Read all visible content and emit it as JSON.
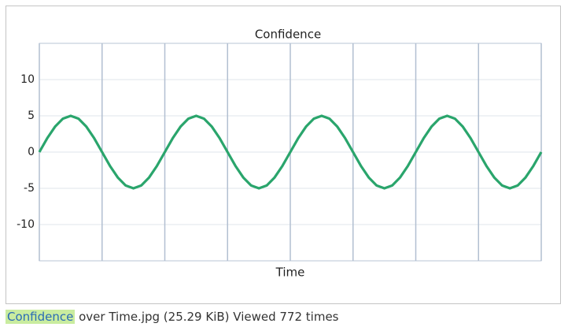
{
  "chart_data": {
    "type": "line",
    "title": "Confidence",
    "x_label": "Time",
    "x": [
      0,
      0.125,
      0.25,
      0.375,
      0.5,
      0.625,
      0.75,
      0.875,
      1,
      1.125,
      1.25,
      1.375,
      1.5,
      1.625,
      1.75,
      1.875,
      2,
      2.125,
      2.25,
      2.375,
      2.5,
      2.625,
      2.75,
      2.875,
      3,
      3.125,
      3.25,
      3.375,
      3.5,
      3.625,
      3.75,
      3.875,
      4,
      4.125,
      4.25,
      4.375,
      4.5,
      4.625,
      4.75,
      4.875,
      5,
      5.125,
      5.25,
      5.375,
      5.5,
      5.625,
      5.75,
      5.875,
      6,
      6.125,
      6.25,
      6.375,
      6.5,
      6.625,
      6.75,
      6.875,
      7,
      7.125,
      7.25,
      7.375,
      7.5,
      7.625,
      7.75,
      7.875,
      8
    ],
    "series": [
      {
        "color": "#2aa56c",
        "values": [
          0,
          1.9,
          3.5,
          4.6,
          5,
          4.6,
          3.5,
          1.9,
          0,
          -1.9,
          -3.5,
          -4.6,
          -5,
          -4.6,
          -3.5,
          -1.9,
          0,
          1.9,
          3.5,
          4.6,
          5,
          4.6,
          3.5,
          1.9,
          0,
          -1.9,
          -3.5,
          -4.6,
          -5,
          -4.6,
          -3.5,
          -1.9,
          0,
          1.9,
          3.5,
          4.6,
          5,
          4.6,
          3.5,
          1.9,
          0,
          -1.9,
          -3.5,
          -4.6,
          -5,
          -4.6,
          -3.5,
          -1.9,
          0,
          1.9,
          3.5,
          4.6,
          5,
          4.6,
          3.5,
          1.9,
          0,
          -1.9,
          -3.5,
          -4.6,
          -5,
          -4.6,
          -3.5,
          -1.9,
          0
        ]
      }
    ],
    "xlim": [
      0,
      8
    ],
    "xticks": [
      0,
      1,
      2,
      3,
      4,
      5,
      6,
      7,
      8
    ],
    "ylim": [
      -15,
      15
    ],
    "yticks": [
      -10,
      -5,
      0,
      5,
      10
    ],
    "grid": true
  },
  "caption": {
    "link": "Confidence",
    "text": "over Time.jpg (25.29 KiB) Viewed 772 times"
  }
}
